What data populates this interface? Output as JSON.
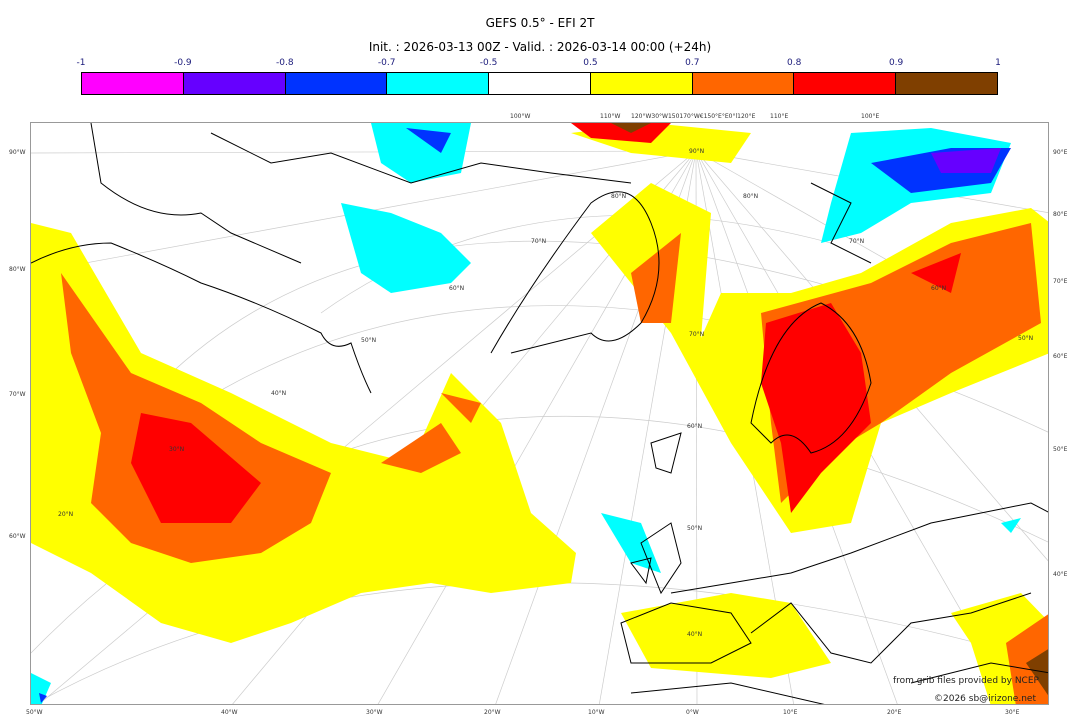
{
  "title": "GEFS 0.5° - EFI 2T",
  "subtitle": "Init. : 2026-03-13 00Z - Valid. : 2026-03-14 00:00 (+24h)",
  "colorbar": {
    "ticks": [
      "-1",
      "-0.9",
      "-0.8",
      "-0.7",
      "-0.5",
      "0.5",
      "0.7",
      "0.8",
      "0.9",
      "1"
    ],
    "colors": [
      "#ff00ff",
      "#6600ff",
      "#0033ff",
      "#00ffff",
      "#ffffff",
      "#ffff00",
      "#ff6600",
      "#ff0000",
      "#7f3f00"
    ]
  },
  "map": {
    "left_labels": [
      "90°W",
      "80°W",
      "70°W",
      "60°W"
    ],
    "right_labels": [
      "90°E",
      "80°E",
      "70°E",
      "60°E",
      "50°E",
      "40°E"
    ],
    "bottom_labels": [
      "50°W",
      "40°W",
      "30°W",
      "20°W",
      "10°W",
      "0°W",
      "10°E",
      "20°E",
      "30°E"
    ],
    "top_labels": [
      "100°W",
      "110°W",
      "120°W30°W150170°W€150°E°E0°l120°E",
      "110°E",
      "100°E"
    ],
    "lat_labels": [
      "90°N",
      "80°N",
      "70°N",
      "60°N",
      "50°N",
      "40°N",
      "30°N",
      "20°N",
      "80°N",
      "70°N",
      "60°N",
      "50°N",
      "70°N",
      "60°N",
      "50°N",
      "40°N"
    ]
  },
  "credits": {
    "source": "from grib files provided by NCEP",
    "copyright": "©2026 sb@irizone.net"
  }
}
